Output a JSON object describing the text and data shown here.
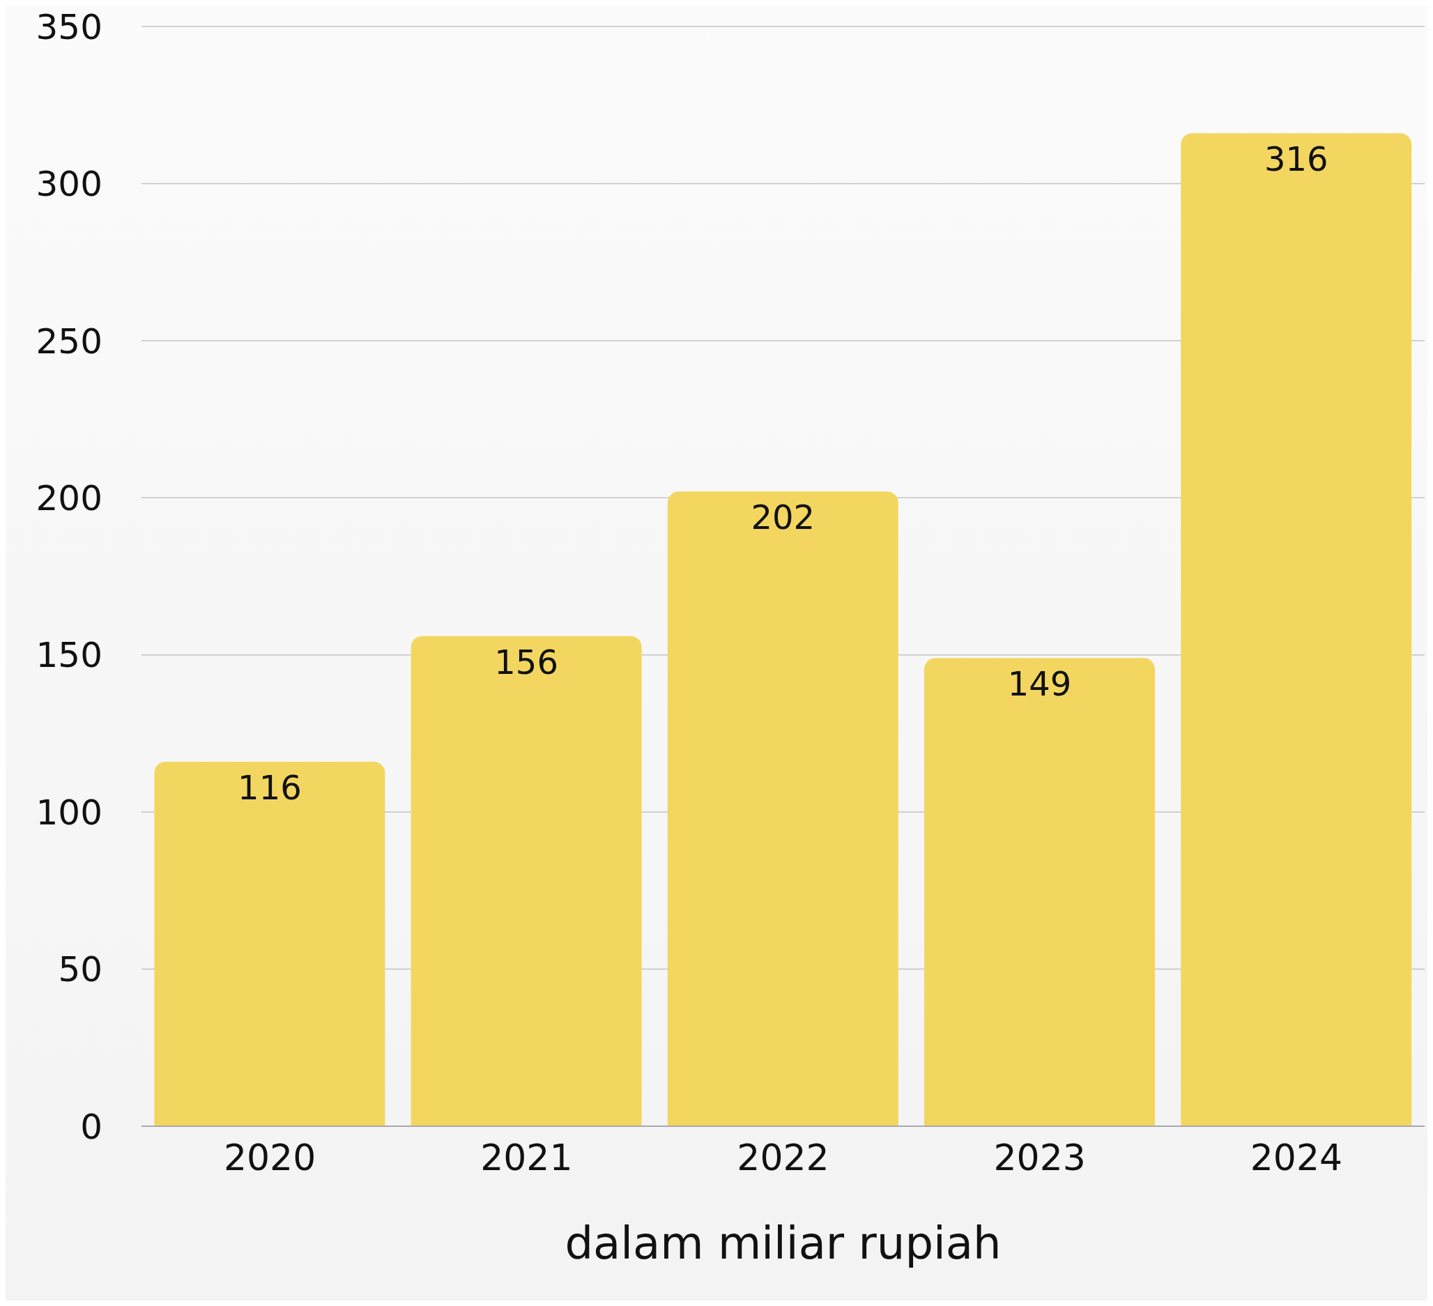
{
  "chart_data": {
    "type": "bar",
    "xlabel": "dalam miliar rupiah",
    "categories": [
      "2020",
      "2021",
      "2022",
      "2023",
      "2024"
    ],
    "values": [
      116,
      156,
      202,
      149,
      316
    ],
    "color": "#f3d660",
    "ylim": [
      0,
      350
    ],
    "yticks": [
      0,
      50,
      100,
      150,
      200,
      250,
      300,
      350
    ],
    "grid": "y",
    "data_labels": true
  }
}
